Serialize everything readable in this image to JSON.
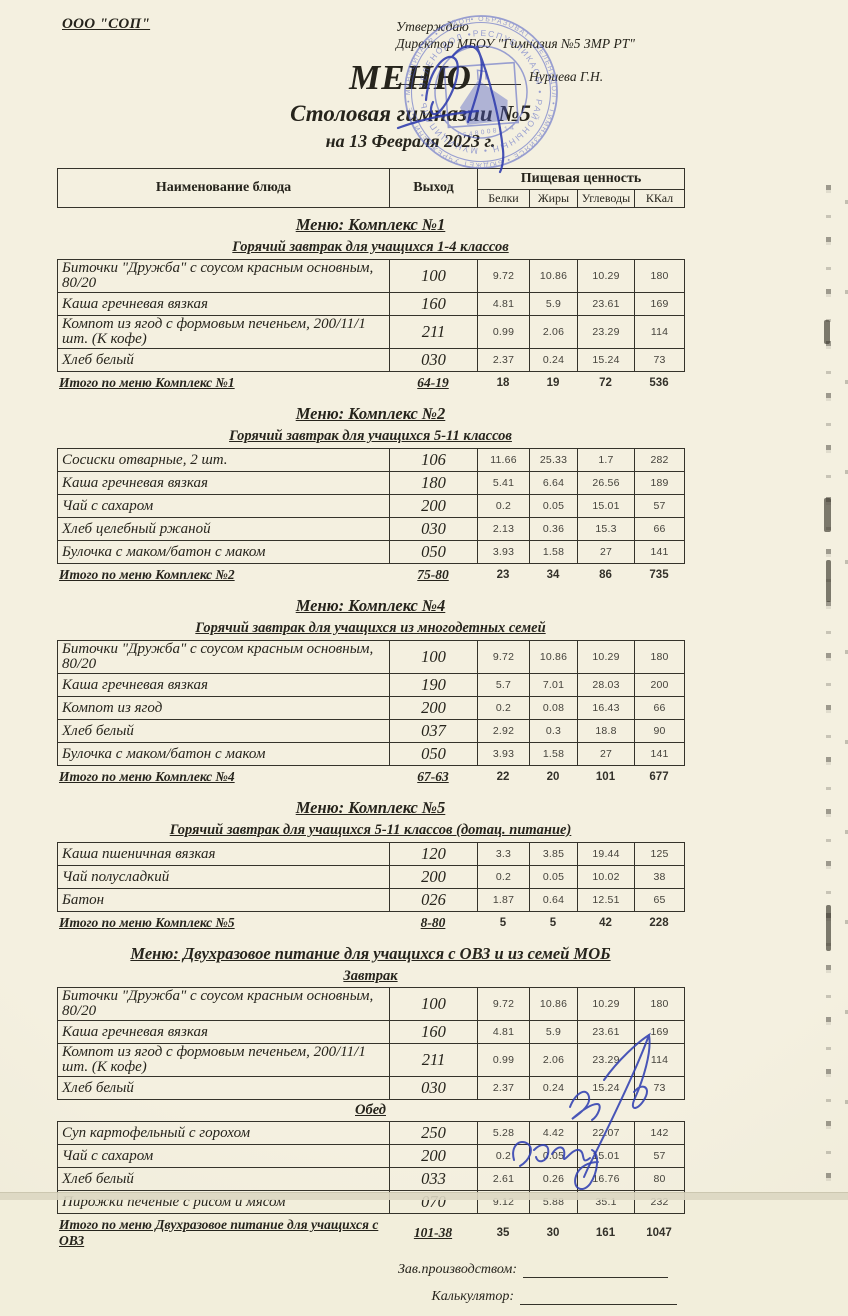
{
  "page": {
    "paper_color": "#f2eedb",
    "ink_color": "#26241c",
    "stamp_color": "#4d5cc4",
    "pen_color": "#2f3cae"
  },
  "header": {
    "org": "ООО \"СОП\"",
    "approve_line1": "Утверждаю",
    "approve_line2": "Директор МБОУ \"Гимназия №5 ЗМР РТ\"",
    "approve_name": "Нуриева Г.Н.",
    "title": "МЕНЮ",
    "subtitle": "Столовая гимназии №5",
    "date_line": "на 13 Февраля 2023 г."
  },
  "stamp": {
    "outer_text": "• ОБРАЗОВАТ • ЗЕЛЕНОДОЛ • ГИМНАЗИЯСЕ • БЮДЖЕТ УЧРЕЖДЕНИЕСЕ • МУНИЦИПАЛЬ • РАЙОНЫНЫҢ •",
    "inner_text": "РЕСПУБЛИКАСЫ • РАЙОНЫНЫҢ • МУНИЦИПАЛЬ • ЗЕЛЕНОДОЛ •",
    "number": "1648008114"
  },
  "table_header": {
    "name": "Наименование блюда",
    "output": "Выход",
    "nutrition": "Пищевая ценность",
    "sub": [
      "Белки",
      "Жиры",
      "Углеводы",
      "ККал"
    ]
  },
  "sections": [
    {
      "heading": "Меню: Комплекс №1",
      "subheading": "Горячий завтрак для учащихся 1-4 классов",
      "blocks": [
        {
          "rows": [
            {
              "name": "Биточки  \"Дружба\" с соусом красным основным, 80/20",
              "output": "100",
              "values": [
                "9.72",
                "10.86",
                "10.29",
                "180"
              ]
            },
            {
              "name": "Каша гречневая вязкая",
              "output": "160",
              "values": [
                "4.81",
                "5.9",
                "23.61",
                "169"
              ]
            },
            {
              "name": "Компот из ягод с формовым печеньем, 200/11/1 шт. (К кофе)",
              "output": "211",
              "values": [
                "0.99",
                "2.06",
                "23.29",
                "114"
              ]
            },
            {
              "name": "Хлеб белый",
              "output": "030",
              "values": [
                "2.37",
                "0.24",
                "15.24",
                "73"
              ]
            }
          ]
        }
      ],
      "total": {
        "label": "Итого по меню Комплекс №1",
        "output": "64-19",
        "values": [
          "18",
          "19",
          "72",
          "536"
        ]
      }
    },
    {
      "heading": "Меню: Комплекс №2",
      "subheading": "Горячий завтрак для учащихся 5-11 классов",
      "blocks": [
        {
          "rows": [
            {
              "name": "Сосиски  отварные, 2 шт.",
              "output": "106",
              "values": [
                "11.66",
                "25.33",
                "1.7",
                "282"
              ]
            },
            {
              "name": "Каша гречневая вязкая",
              "output": "180",
              "values": [
                "5.41",
                "6.64",
                "26.56",
                "189"
              ]
            },
            {
              "name": "Чай с сахаром",
              "output": "200",
              "values": [
                "0.2",
                "0.05",
                "15.01",
                "57"
              ]
            },
            {
              "name": "Хлеб  целебный ржаной",
              "output": "030",
              "values": [
                "2.13",
                "0.36",
                "15.3",
                "66"
              ]
            },
            {
              "name": "Булочка с маком/батон с маком",
              "output": "050",
              "values": [
                "3.93",
                "1.58",
                "27",
                "141"
              ]
            }
          ]
        }
      ],
      "total": {
        "label": "Итого по меню Комплекс №2",
        "output": "75-80",
        "values": [
          "23",
          "34",
          "86",
          "735"
        ]
      }
    },
    {
      "heading": "Меню: Комплекс №4",
      "subheading": "Горячий завтрак для учащихся из многодетных семей",
      "blocks": [
        {
          "rows": [
            {
              "name": "Биточки  \"Дружба\" с соусом красным основным, 80/20",
              "output": "100",
              "values": [
                "9.72",
                "10.86",
                "10.29",
                "180"
              ]
            },
            {
              "name": "Каша гречневая вязкая",
              "output": "190",
              "values": [
                "5.7",
                "7.01",
                "28.03",
                "200"
              ]
            },
            {
              "name": "Компот из  ягод",
              "output": "200",
              "values": [
                "0.2",
                "0.08",
                "16.43",
                "66"
              ]
            },
            {
              "name": "Хлеб белый",
              "output": "037",
              "values": [
                "2.92",
                "0.3",
                "18.8",
                "90"
              ]
            },
            {
              "name": "Булочка с маком/батон с маком",
              "output": "050",
              "values": [
                "3.93",
                "1.58",
                "27",
                "141"
              ]
            }
          ]
        }
      ],
      "total": {
        "label": "Итого по меню Комплекс №4",
        "output": "67-63",
        "values": [
          "22",
          "20",
          "101",
          "677"
        ]
      }
    },
    {
      "heading": "Меню: Комплекс №5",
      "subheading": "Горячий завтрак для учащихся 5-11 классов (дотац. питание)",
      "blocks": [
        {
          "rows": [
            {
              "name": "Каша пшеничная вязкая",
              "output": "120",
              "values": [
                "3.3",
                "3.85",
                "19.44",
                "125"
              ]
            },
            {
              "name": "Чай полусладкий",
              "output": "200",
              "values": [
                "0.2",
                "0.05",
                "10.02",
                "38"
              ]
            },
            {
              "name": "Батон",
              "output": "026",
              "values": [
                "1.87",
                "0.64",
                "12.51",
                "65"
              ]
            }
          ]
        }
      ],
      "total": {
        "label": "Итого по меню Комплекс №5",
        "output": "8-80",
        "values": [
          "5",
          "5",
          "42",
          "228"
        ]
      }
    },
    {
      "heading": "Меню: Двухразовое питание для учащихся с ОВЗ и из семей МОБ",
      "subheading": null,
      "blocks": [
        {
          "label": "Завтрак",
          "rows": [
            {
              "name": "Биточки  \"Дружба\" с соусом красным основным, 80/20",
              "output": "100",
              "values": [
                "9.72",
                "10.86",
                "10.29",
                "180"
              ]
            },
            {
              "name": "Каша гречневая вязкая",
              "output": "160",
              "values": [
                "4.81",
                "5.9",
                "23.61",
                "169"
              ]
            },
            {
              "name": "Компот из ягод с формовым печеньем, 200/11/1 шт. (К кофе)",
              "output": "211",
              "values": [
                "0.99",
                "2.06",
                "23.29",
                "114"
              ]
            },
            {
              "name": "Хлеб белый",
              "output": "030",
              "values": [
                "2.37",
                "0.24",
                "15.24",
                "73"
              ]
            }
          ]
        },
        {
          "label": "Обед",
          "rows": [
            {
              "name": "Суп картофельный с горохом",
              "output": "250",
              "values": [
                "5.28",
                "4.42",
                "22.07",
                "142"
              ]
            },
            {
              "name": "Чай с сахаром",
              "output": "200",
              "values": [
                "0.2",
                "0.05",
                "15.01",
                "57"
              ]
            },
            {
              "name": "Хлеб белый",
              "output": "033",
              "values": [
                "2.61",
                "0.26",
                "16.76",
                "80"
              ]
            },
            {
              "name": "Пирожки печеные с рисом и мясом",
              "output": "070",
              "values": [
                "9.12",
                "5.88",
                "35.1",
                "232"
              ]
            }
          ]
        }
      ],
      "total": {
        "label": "Итого по меню Двухразовое питание для учащихся с ОВЗ",
        "output": "101-38",
        "values": [
          "35",
          "30",
          "161",
          "1047"
        ]
      }
    }
  ],
  "footer": {
    "manager_label": "Зав.производством:",
    "calculator_label": "Калькулятор:"
  }
}
